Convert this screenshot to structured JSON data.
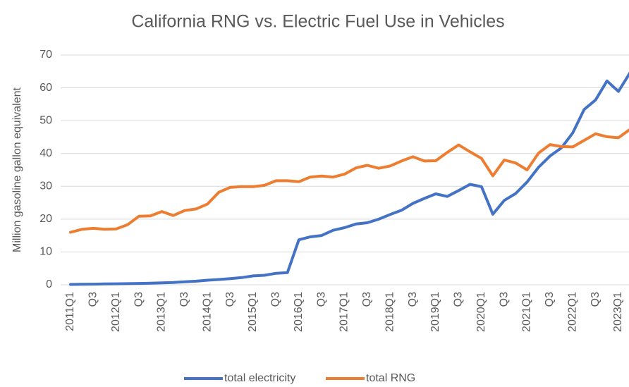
{
  "chart_data": {
    "type": "line",
    "title": "California RNG vs. Electric Fuel Use in Vehicles",
    "y_label": "Million gasoline gallon equivalent",
    "categories": [
      "2011Q1",
      null,
      "Q3",
      null,
      "2012Q1",
      null,
      "Q3",
      null,
      "2013Q1",
      null,
      "Q3",
      null,
      "2014Q1",
      null,
      "Q3",
      null,
      "2015Q1",
      null,
      "Q3",
      null,
      "2016Q1",
      null,
      "Q3",
      null,
      "2017Q1",
      null,
      "Q3",
      null,
      "2018Q1",
      null,
      "Q3",
      null,
      "2019Q1",
      null,
      "Q3",
      null,
      "2020Q1",
      null,
      "Q3",
      null,
      "2021Q1",
      null,
      "Q3",
      null,
      "2022Q1",
      null,
      "Q3",
      null,
      "2023Q1",
      null
    ],
    "series": [
      {
        "name": "total electricity",
        "color": "#4472c4",
        "values": [
          0.1,
          0.15,
          0.2,
          0.25,
          0.3,
          0.35,
          0.4,
          0.5,
          0.6,
          0.7,
          0.9,
          1.1,
          1.4,
          1.6,
          1.9,
          2.2,
          2.7,
          2.9,
          3.5,
          3.7,
          13.7,
          14.6,
          15.0,
          16.6,
          17.4,
          18.5,
          18.9,
          20.0,
          21.4,
          22.7,
          24.8,
          26.3,
          27.7,
          26.9,
          28.7,
          30.6,
          29.9,
          21.5,
          25.7,
          27.8,
          31.3,
          35.8,
          39.2,
          41.7,
          46.3,
          53.4,
          56.3,
          62.1,
          58.9,
          64.5
        ]
      },
      {
        "name": "total RNG",
        "color": "#ed7d31",
        "values": [
          16.0,
          16.9,
          17.2,
          16.9,
          17.0,
          18.3,
          20.9,
          21.0,
          22.3,
          21.1,
          22.6,
          23.1,
          24.6,
          28.2,
          29.7,
          29.9,
          29.9,
          30.3,
          31.7,
          31.7,
          31.4,
          32.8,
          33.1,
          32.8,
          33.7,
          35.6,
          36.4,
          35.5,
          36.2,
          37.7,
          39.0,
          37.7,
          37.8,
          40.3,
          42.6,
          40.5,
          38.5,
          33.2,
          38.0,
          37.1,
          35.0,
          40.1,
          42.7,
          42.1,
          42.0,
          44.0,
          46.0,
          45.1,
          44.8,
          47.3
        ]
      }
    ],
    "ylim": [
      0,
      70
    ],
    "yticks": [
      0,
      10,
      20,
      30,
      40,
      50,
      60,
      70
    ],
    "grid": true,
    "legend": "bottom"
  }
}
